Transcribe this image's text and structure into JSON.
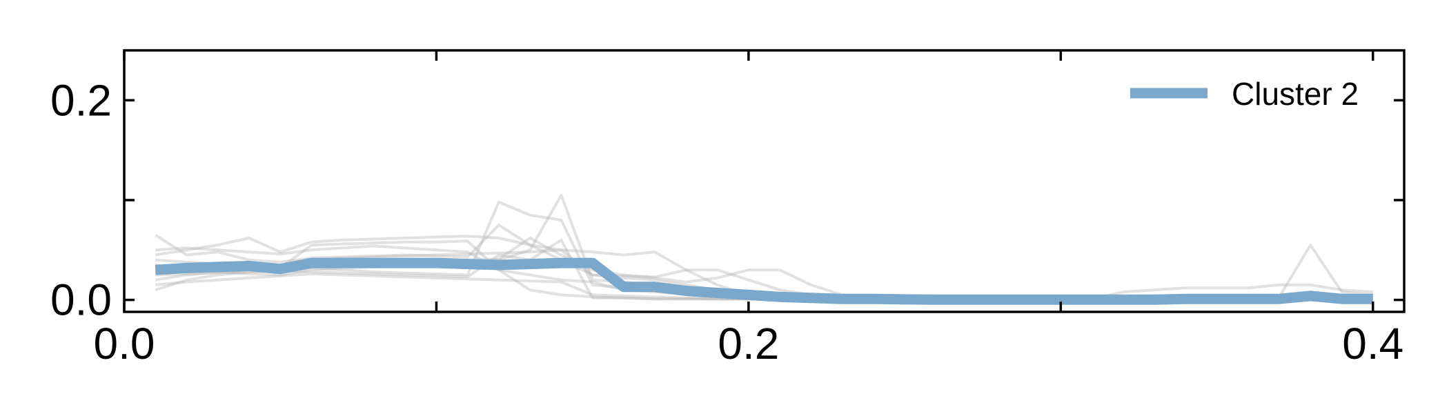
{
  "chart_data": {
    "type": "line",
    "xlim": [
      0.0,
      0.41
    ],
    "ylim": [
      -0.012,
      0.25
    ],
    "x_ticks": [
      0.0,
      0.1,
      0.2,
      0.3,
      0.4
    ],
    "x_tick_labels": [
      "0.0",
      "",
      "0.2",
      "",
      "0.4"
    ],
    "y_ticks": [
      0.0,
      0.1,
      0.2
    ],
    "y_tick_labels": [
      "0.0",
      "",
      "0.2"
    ],
    "grid": false,
    "legend_position": "top-right",
    "x": [
      0.01,
      0.02,
      0.03,
      0.04,
      0.05,
      0.06,
      0.07,
      0.08,
      0.09,
      0.1,
      0.11,
      0.12,
      0.13,
      0.14,
      0.15,
      0.16,
      0.17,
      0.18,
      0.19,
      0.2,
      0.21,
      0.22,
      0.23,
      0.24,
      0.25,
      0.26,
      0.27,
      0.28,
      0.29,
      0.3,
      0.31,
      0.32,
      0.33,
      0.34,
      0.35,
      0.36,
      0.37,
      0.38,
      0.39,
      0.4
    ],
    "series": [
      {
        "name": "Cluster 2",
        "color": "#7aa8cc",
        "highlight": true,
        "values": [
          0.03,
          0.032,
          0.033,
          0.034,
          0.031,
          0.037,
          0.037,
          0.037,
          0.037,
          0.037,
          0.036,
          0.035,
          0.036,
          0.037,
          0.037,
          0.013,
          0.013,
          0.009,
          0.007,
          0.005,
          0.003,
          0.002,
          0.001,
          0.001,
          0.0005,
          0.0003,
          0.0003,
          0.0003,
          0.0003,
          0.0003,
          0.0003,
          0.0003,
          0.0003,
          0.001,
          0.001,
          0.001,
          0.001,
          0.004,
          0.001,
          0.001
        ]
      }
    ],
    "background_series": {
      "color": "#b4b4b4",
      "values": [
        [
          0.065,
          0.045,
          0.048,
          0.04,
          0.038,
          0.042,
          0.043,
          0.044,
          0.045,
          0.044,
          0.043,
          0.075,
          0.055,
          0.04,
          0.025,
          0.022,
          0.02,
          0.015,
          0.01,
          0.005,
          0.003,
          0.002,
          0.001,
          0.001,
          0.001,
          0.001,
          0.001,
          0.001,
          0.001,
          0.001,
          0.001,
          0.001,
          0.001,
          0.001,
          0.001,
          0.001,
          0.001,
          0.001,
          0.001,
          0.001
        ],
        [
          0.045,
          0.05,
          0.055,
          0.062,
          0.048,
          0.058,
          0.06,
          0.061,
          0.062,
          0.063,
          0.064,
          0.062,
          0.055,
          0.05,
          0.048,
          0.045,
          0.048,
          0.03,
          0.015,
          0.005,
          0.003,
          0.002,
          0.001,
          0.001,
          0.001,
          0.001,
          0.001,
          0.001,
          0.001,
          0.001,
          0.001,
          0.001,
          0.001,
          0.001,
          0.001,
          0.001,
          0.001,
          0.001,
          0.001,
          0.001
        ],
        [
          0.02,
          0.025,
          0.028,
          0.03,
          0.032,
          0.055,
          0.056,
          0.057,
          0.058,
          0.058,
          0.059,
          0.03,
          0.025,
          0.02,
          0.018,
          0.01,
          0.008,
          0.006,
          0.005,
          0.004,
          0.003,
          0.002,
          0.001,
          0.001,
          0.001,
          0.001,
          0.001,
          0.001,
          0.001,
          0.001,
          0.001,
          0.001,
          0.001,
          0.001,
          0.001,
          0.001,
          0.001,
          0.001,
          0.001,
          0.001
        ],
        [
          0.01,
          0.02,
          0.025,
          0.028,
          0.03,
          0.032,
          0.03,
          0.028,
          0.027,
          0.026,
          0.025,
          0.098,
          0.085,
          0.08,
          0.015,
          0.012,
          0.01,
          0.008,
          0.006,
          0.004,
          0.003,
          0.002,
          0.001,
          0.001,
          0.001,
          0.001,
          0.001,
          0.001,
          0.001,
          0.001,
          0.001,
          0.001,
          0.001,
          0.001,
          0.001,
          0.001,
          0.001,
          0.001,
          0.001,
          0.001
        ],
        [
          0.035,
          0.03,
          0.028,
          0.026,
          0.025,
          0.03,
          0.032,
          0.033,
          0.034,
          0.035,
          0.036,
          0.04,
          0.05,
          0.105,
          0.02,
          0.018,
          0.015,
          0.012,
          0.01,
          0.008,
          0.006,
          0.004,
          0.003,
          0.002,
          0.001,
          0.001,
          0.001,
          0.001,
          0.001,
          0.001,
          0.001,
          0.001,
          0.001,
          0.001,
          0.001,
          0.001,
          0.001,
          0.001,
          0.001,
          0.001
        ],
        [
          0.028,
          0.03,
          0.032,
          0.034,
          0.033,
          0.04,
          0.042,
          0.043,
          0.044,
          0.045,
          0.046,
          0.047,
          0.048,
          0.05,
          0.025,
          0.024,
          0.023,
          0.03,
          0.03,
          0.02,
          0.01,
          0.005,
          0.003,
          0.001,
          0.001,
          0.001,
          0.001,
          0.001,
          0.001,
          0.001,
          0.001,
          0.001,
          0.001,
          0.001,
          0.001,
          0.002,
          0.003,
          0.055,
          0.008,
          0.005
        ],
        [
          0.025,
          0.026,
          0.027,
          0.028,
          0.029,
          0.028,
          0.027,
          0.026,
          0.025,
          0.024,
          0.023,
          0.045,
          0.04,
          0.06,
          0.002,
          0.002,
          0.001,
          0.001,
          0.001,
          0.001,
          0.001,
          0.001,
          0.001,
          0.001,
          0.001,
          0.001,
          0.001,
          0.001,
          0.001,
          0.001,
          0.001,
          0.001,
          0.001,
          0.001,
          0.001,
          0.001,
          0.001,
          0.001,
          0.001,
          0.001
        ],
        [
          0.04,
          0.038,
          0.036,
          0.034,
          0.032,
          0.035,
          0.036,
          0.037,
          0.038,
          0.039,
          0.04,
          0.041,
          0.062,
          0.045,
          0.03,
          0.025,
          0.022,
          0.018,
          0.022,
          0.03,
          0.03,
          0.015,
          0.005,
          0.002,
          0.001,
          0.001,
          0.001,
          0.001,
          0.001,
          0.001,
          0.001,
          0.008,
          0.01,
          0.012,
          0.012,
          0.012,
          0.015,
          0.015,
          0.01,
          0.008
        ],
        [
          0.015,
          0.018,
          0.02,
          0.022,
          0.024,
          0.026,
          0.025,
          0.024,
          0.023,
          0.022,
          0.021,
          0.02,
          0.019,
          0.018,
          0.005,
          0.004,
          0.003,
          0.002,
          0.001,
          0.001,
          0.001,
          0.001,
          0.001,
          0.001,
          0.001,
          0.001,
          0.001,
          0.001,
          0.001,
          0.001,
          0.001,
          0.001,
          0.001,
          0.001,
          0.001,
          0.001,
          0.001,
          0.001,
          0.001,
          0.001
        ],
        [
          0.05,
          0.052,
          0.05,
          0.048,
          0.046,
          0.05,
          0.052,
          0.054,
          0.052,
          0.05,
          0.048,
          0.03,
          0.01,
          0.005,
          0.003,
          0.002,
          0.001,
          0.001,
          0.001,
          0.001,
          0.001,
          0.001,
          0.001,
          0.001,
          0.001,
          0.001,
          0.001,
          0.001,
          0.001,
          0.001,
          0.001,
          0.001,
          0.001,
          0.001,
          0.001,
          0.001,
          0.001,
          0.001,
          0.001,
          0.001
        ]
      ]
    },
    "legend": [
      {
        "label": "Cluster 2",
        "color": "#7aa8cc"
      }
    ]
  }
}
